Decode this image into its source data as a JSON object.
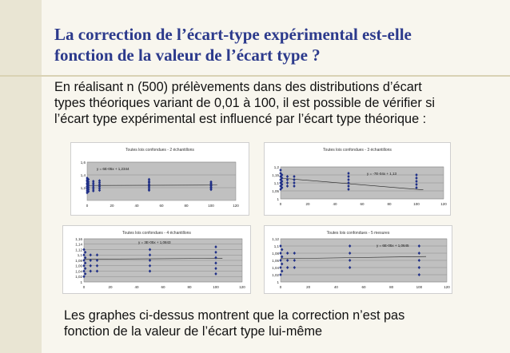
{
  "slide": {
    "title_line1": "La correction de l’écart-type expérimental est-elle",
    "title_line2": "fonction de la valeur de l’écart type ?",
    "intro_line1": "En réalisant n (500) prélèvements dans des distributions d’écart",
    "intro_line2": "types théoriques variant de 0,01 à 100, il est possible de vérifier si",
    "intro_line3": "l’écart type expérimental est influencé par l’écart type théorique :",
    "outro_line1": "Les graphes ci-dessus montrent que la correction n’est pas",
    "outro_line2": "fonction de la valeur de l’écart type lui-même",
    "colors": {
      "title": "#2c3a8c",
      "marker": "#1f2f87",
      "plot_bg": "#c0c0c0",
      "side_bar": "#e9e5d3"
    }
  },
  "chart_data": [
    {
      "type": "scatter",
      "title": "Toutes lois confondues - 2 échantillons",
      "equation": "y = 6E-05x + 1,2344",
      "trend": {
        "slope": 6e-05,
        "intercept": 1.2344
      },
      "xlim": [
        0,
        120
      ],
      "ylim": [
        1,
        1.6
      ],
      "xticks": [
        "0",
        "20",
        "40",
        "60",
        "80",
        "100",
        "120"
      ],
      "yticks": [
        "1,2",
        "1,4",
        "1,6"
      ],
      "clusters": [
        {
          "x": 0.01,
          "values": [
            1.12,
            1.15,
            1.18,
            1.2,
            1.22,
            1.25,
            1.27,
            1.3,
            1.32,
            1.35
          ]
        },
        {
          "x": 1,
          "values": [
            1.14,
            1.17,
            1.2,
            1.23,
            1.26,
            1.29,
            1.33
          ]
        },
        {
          "x": 5,
          "values": [
            1.15,
            1.18,
            1.21,
            1.24,
            1.27,
            1.3
          ]
        },
        {
          "x": 10,
          "values": [
            1.16,
            1.19,
            1.22,
            1.25,
            1.28,
            1.31
          ]
        },
        {
          "x": 50,
          "values": [
            1.16,
            1.18,
            1.21,
            1.23,
            1.25,
            1.28,
            1.3,
            1.33
          ]
        },
        {
          "x": 100,
          "values": [
            1.17,
            1.19,
            1.21,
            1.23,
            1.25,
            1.27,
            1.29
          ]
        }
      ]
    },
    {
      "type": "scatter",
      "title": "Toutes lois confondues - 3 échantillons",
      "equation": "y = -7E-04x + 1,13",
      "trend": {
        "slope": -0.0007,
        "intercept": 1.13
      },
      "xlim": [
        0,
        120
      ],
      "ylim": [
        1,
        1.2
      ],
      "xticks": [
        "0",
        "20",
        "40",
        "60",
        "80",
        "100",
        "120"
      ],
      "yticks": [
        "1",
        "1,05",
        "1,1",
        "1,15",
        "1,2"
      ],
      "clusters": [
        {
          "x": 0.01,
          "values": [
            1.06,
            1.08,
            1.1,
            1.12,
            1.14,
            1.16,
            1.18
          ]
        },
        {
          "x": 1,
          "values": [
            1.07,
            1.09,
            1.11,
            1.13,
            1.15
          ]
        },
        {
          "x": 5,
          "values": [
            1.08,
            1.1,
            1.12,
            1.14
          ]
        },
        {
          "x": 10,
          "values": [
            1.08,
            1.1,
            1.12,
            1.14
          ]
        },
        {
          "x": 50,
          "values": [
            1.06,
            1.08,
            1.1,
            1.12,
            1.14,
            1.16
          ]
        },
        {
          "x": 100,
          "values": [
            1.07,
            1.09,
            1.11,
            1.13,
            1.15
          ]
        }
      ]
    },
    {
      "type": "scatter",
      "title": "Toutes lois confondues - 4 échantillons",
      "equation": "y = 3E-05x + 1,0843",
      "trend": {
        "slope": 3e-05,
        "intercept": 1.0843
      },
      "xlim": [
        0,
        120
      ],
      "ylim": [
        1,
        1.16
      ],
      "xticks": [
        "0",
        "20",
        "40",
        "60",
        "80",
        "100",
        "120"
      ],
      "yticks": [
        "1",
        "1,02",
        "1,04",
        "1,06",
        "1,08",
        "1,1",
        "1,12",
        "1,14",
        "1,16"
      ],
      "clusters": [
        {
          "x": 0.01,
          "values": [
            1.02,
            1.04,
            1.06,
            1.08,
            1.1,
            1.12
          ]
        },
        {
          "x": 1,
          "values": [
            1.03,
            1.05,
            1.07,
            1.09,
            1.11
          ]
        },
        {
          "x": 5,
          "values": [
            1.04,
            1.06,
            1.08,
            1.1
          ]
        },
        {
          "x": 10,
          "values": [
            1.04,
            1.06,
            1.08,
            1.1
          ]
        },
        {
          "x": 50,
          "values": [
            1.04,
            1.06,
            1.08,
            1.1,
            1.12
          ]
        },
        {
          "x": 100,
          "values": [
            1.03,
            1.05,
            1.07,
            1.09,
            1.11,
            1.13
          ]
        }
      ]
    },
    {
      "type": "scatter",
      "title": "Toutes lois confondues - 5 mesures",
      "equation": "y = 6E-05x + 1,0645",
      "trend": {
        "slope": 6e-05,
        "intercept": 1.0645
      },
      "xlim": [
        0,
        120
      ],
      "ylim": [
        1,
        1.12
      ],
      "xticks": [
        "0",
        "20",
        "40",
        "60",
        "80",
        "100",
        "120"
      ],
      "yticks": [
        "1",
        "1,02",
        "1,04",
        "1,06",
        "1,08",
        "1,1",
        "1,12"
      ],
      "clusters": [
        {
          "x": 0.01,
          "values": [
            1.02,
            1.04,
            1.06,
            1.08,
            1.1
          ]
        },
        {
          "x": 1,
          "values": [
            1.03,
            1.05,
            1.07,
            1.09
          ]
        },
        {
          "x": 5,
          "values": [
            1.04,
            1.06,
            1.08
          ]
        },
        {
          "x": 10,
          "values": [
            1.04,
            1.06,
            1.08
          ]
        },
        {
          "x": 50,
          "values": [
            1.04,
            1.06,
            1.08,
            1.1
          ]
        },
        {
          "x": 100,
          "values": [
            1.02,
            1.04,
            1.06,
            1.08,
            1.1
          ]
        }
      ]
    }
  ]
}
